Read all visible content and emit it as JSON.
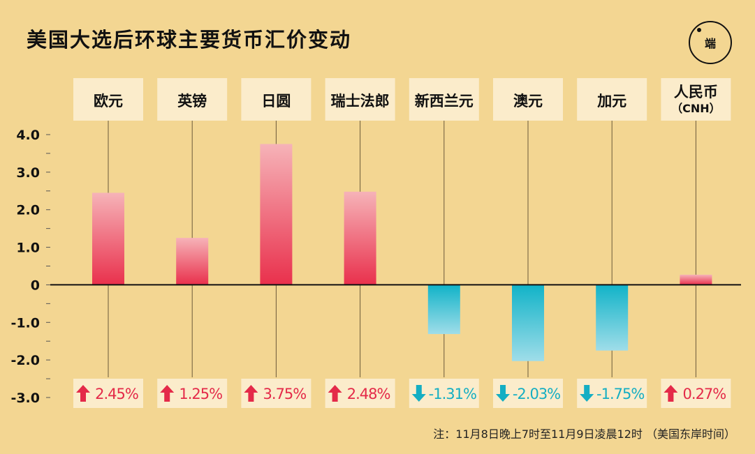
{
  "title": "美国大选后环球主要货币汇价变动",
  "logo_text": "端",
  "footnote": "注：11月8日晚上7时至11月9日凌晨12时 （美国东岸时间）",
  "chart_data": {
    "type": "bar",
    "title": "美国大选后环球主要货币汇价变动",
    "categories": [
      "欧元",
      "英镑",
      "日圆",
      "瑞士法郎",
      "新西兰元",
      "澳元",
      "加元",
      "人民币（CNH）"
    ],
    "category_lines": [
      [
        "欧元"
      ],
      [
        "英镑"
      ],
      [
        "日圆"
      ],
      [
        "瑞士法郎"
      ],
      [
        "新西兰元"
      ],
      [
        "澳元"
      ],
      [
        "加元"
      ],
      [
        "人民币",
        "（CNH）"
      ]
    ],
    "values": [
      2.45,
      1.25,
      3.75,
      2.48,
      -1.31,
      -2.03,
      -1.75,
      0.27
    ],
    "value_labels": [
      "2.45%",
      "1.25%",
      "3.75%",
      "2.48%",
      "-1.31%",
      "-2.03%",
      "-1.75%",
      "0.27%"
    ],
    "y_ticks": [
      4.0,
      3.0,
      2.0,
      1.0,
      0,
      -1.0,
      -2.0,
      -3.0
    ],
    "y_tick_labels": [
      "4.0",
      "3.0",
      "2.0",
      "1.0",
      "0",
      "-1.0",
      "-2.0",
      "-3.0"
    ],
    "ylim": [
      -3.0,
      4.0
    ],
    "xlabel": "",
    "ylabel": "",
    "colors": {
      "positive_top": "#f6b3b8",
      "positive_bottom": "#e9304c",
      "negative_top": "#11b3c8",
      "negative_bottom": "#9fdde9",
      "up_arrow": "#e42a49",
      "down_arrow": "#14aec3",
      "label_box": "#fbeccb",
      "background": "#f3d692"
    }
  }
}
